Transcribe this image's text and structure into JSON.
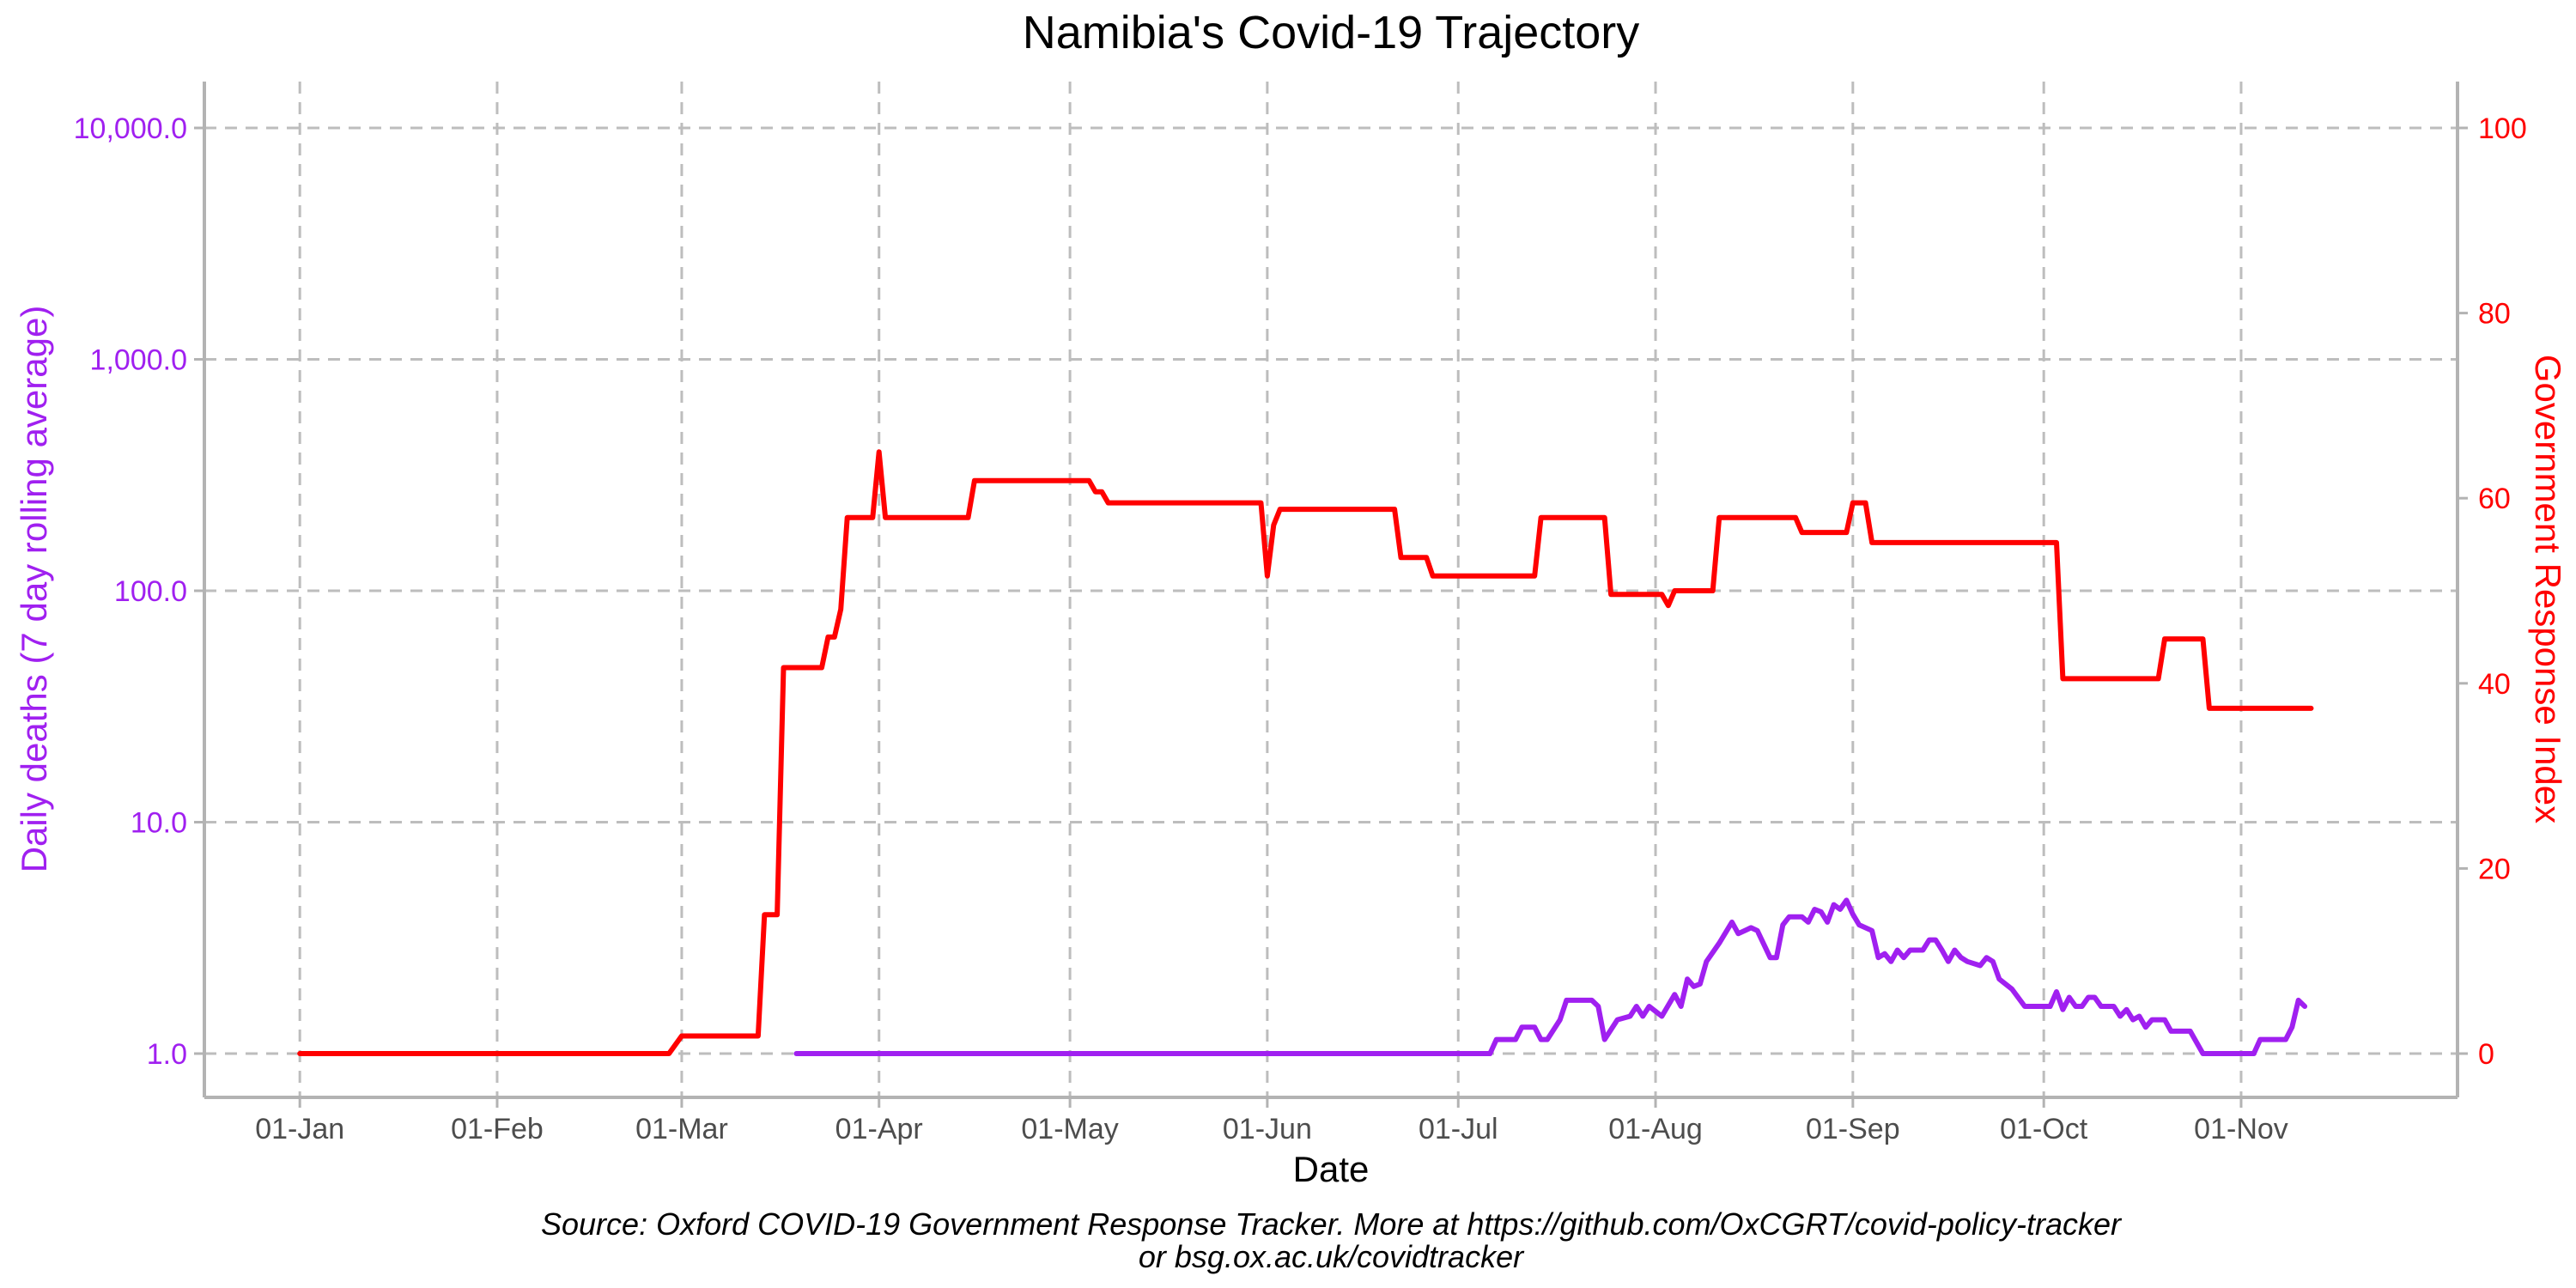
{
  "chart_data": {
    "type": "line",
    "title": "Namibia's Covid-19 Trajectory",
    "xlabel": "Date",
    "ylabel_left": "Daily deaths (7 day rolling average)",
    "ylabel_right": "Government Response Index",
    "caption_line1": "Source: Oxford COVID-19 Government Response Tracker. More at https://github.com/OxCGRT/covid-policy-tracker",
    "caption_line2": "or bsg.ox.ac.uk/covidtracker",
    "x_ticks": [
      {
        "date": "2020-01-01",
        "label": "01-Jan"
      },
      {
        "date": "2020-02-01",
        "label": "01-Feb"
      },
      {
        "date": "2020-03-01",
        "label": "01-Mar"
      },
      {
        "date": "2020-04-01",
        "label": "01-Apr"
      },
      {
        "date": "2020-05-01",
        "label": "01-May"
      },
      {
        "date": "2020-06-01",
        "label": "01-Jun"
      },
      {
        "date": "2020-07-01",
        "label": "01-Jul"
      },
      {
        "date": "2020-08-01",
        "label": "01-Aug"
      },
      {
        "date": "2020-09-01",
        "label": "01-Sep"
      },
      {
        "date": "2020-10-01",
        "label": "01-Oct"
      },
      {
        "date": "2020-11-01",
        "label": "01-Nov"
      }
    ],
    "x_range": [
      "2019-12-17",
      "2020-12-05"
    ],
    "y_left": {
      "scale": "log10",
      "ylim": [
        1,
        10000
      ],
      "ticks": [
        {
          "value": 1,
          "label": "1.0"
        },
        {
          "value": 10,
          "label": "10.0"
        },
        {
          "value": 100,
          "label": "100.0"
        },
        {
          "value": 1000,
          "label": "1,000.0"
        },
        {
          "value": 10000,
          "label": "10,000.0"
        }
      ]
    },
    "y_right": {
      "scale": "linear",
      "ylim": [
        0,
        100
      ],
      "ticks": [
        {
          "value": 0,
          "label": "0"
        },
        {
          "value": 20,
          "label": "20"
        },
        {
          "value": 40,
          "label": "40"
        },
        {
          "value": 60,
          "label": "60"
        },
        {
          "value": 80,
          "label": "80"
        },
        {
          "value": 100,
          "label": "100"
        }
      ]
    },
    "grid": true,
    "legend": "none",
    "series": [
      {
        "axis": "right",
        "color": "#ff0000",
        "points": [
          [
            "2020-01-01",
            0
          ],
          [
            "2020-02-28",
            0
          ],
          [
            "2020-03-01",
            1.9
          ],
          [
            "2020-03-13",
            1.9
          ],
          [
            "2020-03-14",
            15
          ],
          [
            "2020-03-16",
            15
          ],
          [
            "2020-03-17",
            41.7
          ],
          [
            "2020-03-23",
            41.7
          ],
          [
            "2020-03-24",
            45
          ],
          [
            "2020-03-25",
            45
          ],
          [
            "2020-03-26",
            48
          ],
          [
            "2020-03-27",
            57.9
          ],
          [
            "2020-03-31",
            57.9
          ],
          [
            "2020-04-01",
            65
          ],
          [
            "2020-04-02",
            57.9
          ],
          [
            "2020-04-15",
            57.9
          ],
          [
            "2020-04-16",
            61.9
          ],
          [
            "2020-05-04",
            61.9
          ],
          [
            "2020-05-05",
            60.7
          ],
          [
            "2020-05-06",
            60.7
          ],
          [
            "2020-05-07",
            59.5
          ],
          [
            "2020-05-31",
            59.5
          ],
          [
            "2020-06-01",
            51.6
          ],
          [
            "2020-06-02",
            57.1
          ],
          [
            "2020-06-03",
            58.8
          ],
          [
            "2020-06-21",
            58.8
          ],
          [
            "2020-06-22",
            53.6
          ],
          [
            "2020-06-26",
            53.6
          ],
          [
            "2020-06-27",
            51.6
          ],
          [
            "2020-07-13",
            51.6
          ],
          [
            "2020-07-14",
            57.9
          ],
          [
            "2020-07-24",
            57.9
          ],
          [
            "2020-07-25",
            49.6
          ],
          [
            "2020-08-02",
            49.6
          ],
          [
            "2020-08-03",
            48.4
          ],
          [
            "2020-08-04",
            50
          ],
          [
            "2020-08-10",
            50
          ],
          [
            "2020-08-11",
            57.9
          ],
          [
            "2020-08-23",
            57.9
          ],
          [
            "2020-08-24",
            56.3
          ],
          [
            "2020-08-31",
            56.3
          ],
          [
            "2020-09-01",
            59.5
          ],
          [
            "2020-09-03",
            59.5
          ],
          [
            "2020-09-04",
            55.2
          ],
          [
            "2020-10-03",
            55.2
          ],
          [
            "2020-10-04",
            40.5
          ],
          [
            "2020-10-19",
            40.5
          ],
          [
            "2020-10-20",
            44.8
          ],
          [
            "2020-10-26",
            44.8
          ],
          [
            "2020-10-27",
            37.3
          ],
          [
            "2020-11-12",
            37.3
          ]
        ]
      },
      {
        "axis": "left",
        "color": "#a020f0",
        "points": [
          [
            "2020-03-19",
            1
          ],
          [
            "2020-07-06",
            1
          ],
          [
            "2020-07-07",
            1.15
          ],
          [
            "2020-07-10",
            1.15
          ],
          [
            "2020-07-11",
            1.3
          ],
          [
            "2020-07-13",
            1.3
          ],
          [
            "2020-07-14",
            1.15
          ],
          [
            "2020-07-15",
            1.15
          ],
          [
            "2020-07-17",
            1.4
          ],
          [
            "2020-07-18",
            1.7
          ],
          [
            "2020-07-22",
            1.7
          ],
          [
            "2020-07-23",
            1.6
          ],
          [
            "2020-07-24",
            1.15
          ],
          [
            "2020-07-26",
            1.4
          ],
          [
            "2020-07-28",
            1.45
          ],
          [
            "2020-07-29",
            1.6
          ],
          [
            "2020-07-30",
            1.45
          ],
          [
            "2020-07-31",
            1.6
          ],
          [
            "2020-08-02",
            1.45
          ],
          [
            "2020-08-04",
            1.8
          ],
          [
            "2020-08-05",
            1.6
          ],
          [
            "2020-08-06",
            2.1
          ],
          [
            "2020-08-07",
            1.95
          ],
          [
            "2020-08-08",
            2.0
          ],
          [
            "2020-08-09",
            2.5
          ],
          [
            "2020-08-11",
            3.0
          ],
          [
            "2020-08-13",
            3.7
          ],
          [
            "2020-08-14",
            3.3
          ],
          [
            "2020-08-16",
            3.5
          ],
          [
            "2020-08-17",
            3.4
          ],
          [
            "2020-08-19",
            2.6
          ],
          [
            "2020-08-20",
            2.6
          ],
          [
            "2020-08-21",
            3.6
          ],
          [
            "2020-08-22",
            3.9
          ],
          [
            "2020-08-24",
            3.9
          ],
          [
            "2020-08-25",
            3.7
          ],
          [
            "2020-08-26",
            4.2
          ],
          [
            "2020-08-27",
            4.1
          ],
          [
            "2020-08-28",
            3.7
          ],
          [
            "2020-08-29",
            4.4
          ],
          [
            "2020-08-30",
            4.2
          ],
          [
            "2020-08-31",
            4.6
          ],
          [
            "2020-09-01",
            4.0
          ],
          [
            "2020-09-02",
            3.6
          ],
          [
            "2020-09-04",
            3.4
          ],
          [
            "2020-09-05",
            2.6
          ],
          [
            "2020-09-06",
            2.7
          ],
          [
            "2020-09-07",
            2.5
          ],
          [
            "2020-09-08",
            2.8
          ],
          [
            "2020-09-09",
            2.6
          ],
          [
            "2020-09-10",
            2.8
          ],
          [
            "2020-09-12",
            2.8
          ],
          [
            "2020-09-13",
            3.1
          ],
          [
            "2020-09-14",
            3.1
          ],
          [
            "2020-09-15",
            2.8
          ],
          [
            "2020-09-16",
            2.5
          ],
          [
            "2020-09-17",
            2.8
          ],
          [
            "2020-09-18",
            2.6
          ],
          [
            "2020-09-19",
            2.5
          ],
          [
            "2020-09-21",
            2.4
          ],
          [
            "2020-09-22",
            2.6
          ],
          [
            "2020-09-23",
            2.5
          ],
          [
            "2020-09-24",
            2.1
          ],
          [
            "2020-09-26",
            1.9
          ],
          [
            "2020-09-28",
            1.6
          ],
          [
            "2020-10-02",
            1.6
          ],
          [
            "2020-10-03",
            1.85
          ],
          [
            "2020-10-04",
            1.55
          ],
          [
            "2020-10-05",
            1.75
          ],
          [
            "2020-10-06",
            1.6
          ],
          [
            "2020-10-07",
            1.6
          ],
          [
            "2020-10-08",
            1.75
          ],
          [
            "2020-10-09",
            1.75
          ],
          [
            "2020-10-10",
            1.6
          ],
          [
            "2020-10-12",
            1.6
          ],
          [
            "2020-10-13",
            1.45
          ],
          [
            "2020-10-14",
            1.55
          ],
          [
            "2020-10-15",
            1.4
          ],
          [
            "2020-10-16",
            1.45
          ],
          [
            "2020-10-17",
            1.3
          ],
          [
            "2020-10-18",
            1.4
          ],
          [
            "2020-10-20",
            1.4
          ],
          [
            "2020-10-21",
            1.25
          ],
          [
            "2020-10-24",
            1.25
          ],
          [
            "2020-10-26",
            1
          ],
          [
            "2020-11-03",
            1
          ],
          [
            "2020-11-04",
            1.15
          ],
          [
            "2020-11-08",
            1.15
          ],
          [
            "2020-11-09",
            1.3
          ],
          [
            "2020-11-10",
            1.7
          ],
          [
            "2020-11-11",
            1.6
          ]
        ]
      }
    ]
  }
}
